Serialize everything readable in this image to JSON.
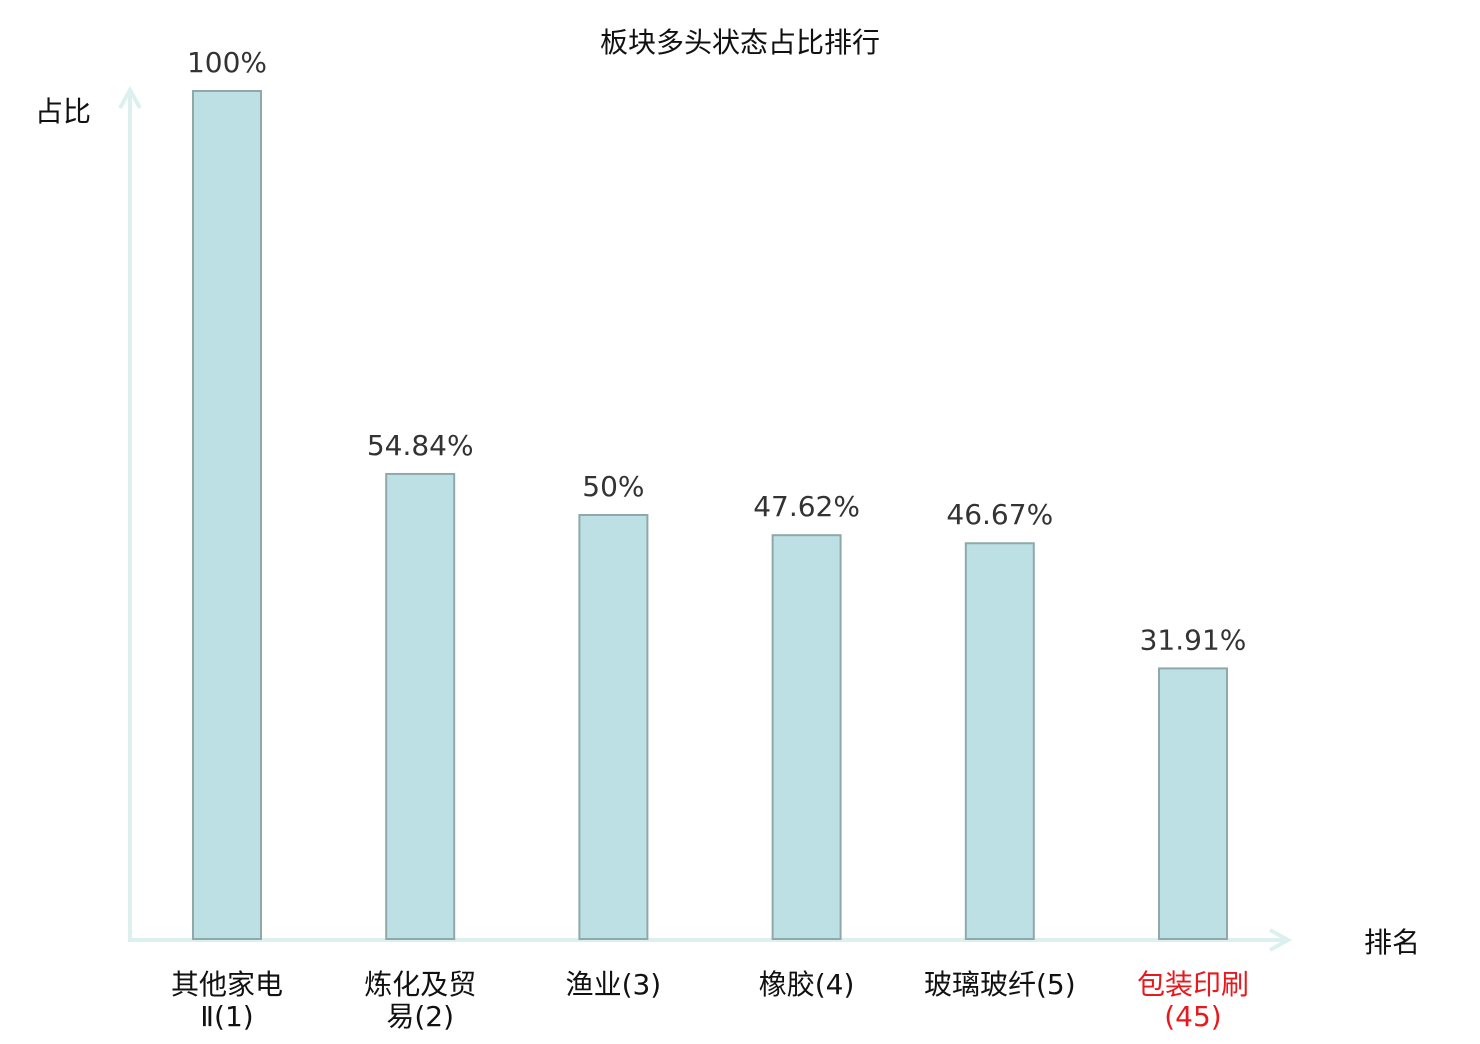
{
  "chart_data": {
    "type": "bar",
    "title": "板块多头状态占比排行",
    "xlabel": "排名",
    "ylabel": "占比",
    "categories": [
      "其他家电Ⅱ(1)",
      "炼化及贸易(2)",
      "渔业(3)",
      "橡胶(4)",
      "玻璃玻纤(5)",
      "包装印刷(45)"
    ],
    "values": [
      100,
      54.84,
      50,
      47.62,
      46.67,
      31.91
    ],
    "data_labels": [
      "100%",
      "54.84%",
      "50%",
      "47.62%",
      "46.67%",
      "31.91%"
    ],
    "ylim": [
      0,
      100
    ],
    "grid": false,
    "highlighted_category_index": 5,
    "colors": {
      "bar_fill": "#bce0e3",
      "bar_stroke": "#8fa9aa",
      "axis": "#dcf1ef",
      "text": "#222222",
      "highlight_text": "#e8191c"
    }
  }
}
